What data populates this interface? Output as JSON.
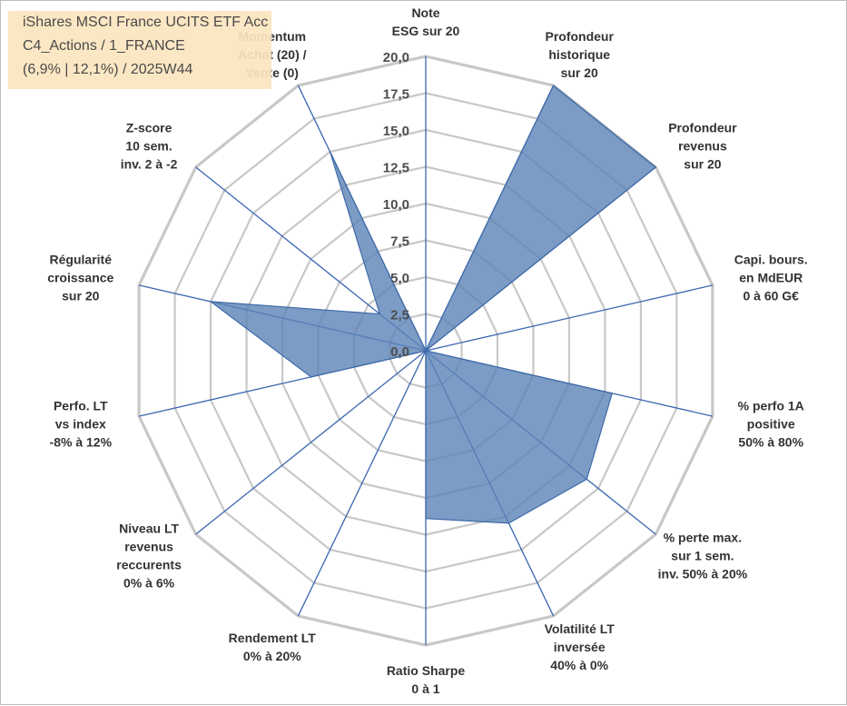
{
  "title": {
    "line1": "iShares MSCI France UCITS ETF Acc",
    "line2": "C4_Actions / 1_FRANCE",
    "line3": "(6,9% | 12,1%) / 2025W44"
  },
  "colors": {
    "fill": "#5b83b7",
    "stroke": "#3f6aa8",
    "grid": "#c8c8c8",
    "spoke": "#3a66b0",
    "title_bg": "#fbe6bf"
  },
  "chart_data": {
    "type": "radar",
    "rlim": [
      0,
      20
    ],
    "ticks": [
      "0,0",
      "2,5",
      "5,0",
      "7,5",
      "10,0",
      "12,5",
      "15,0",
      "17,5",
      "20,0"
    ],
    "axes": [
      {
        "label": [
          "Note",
          "ESG sur 20"
        ],
        "value": 0
      },
      {
        "label": [
          "Profondeur",
          "historique",
          "sur 20"
        ],
        "value": 20
      },
      {
        "label": [
          "Profondeur",
          "revenus",
          "sur 20"
        ],
        "value": 20
      },
      {
        "label": [
          "Capi. bours.",
          "en MdEUR",
          "0 à 60 G€"
        ],
        "value": 0
      },
      {
        "label": [
          "% perfo 1A",
          "positive",
          "50% à 80%"
        ],
        "value": 13
      },
      {
        "label": [
          "% perte max.",
          "sur 1 sem.",
          "inv. 50% à 20%"
        ],
        "value": 14
      },
      {
        "label": [
          "Volatilité LT",
          "inversée",
          "40% à 0%"
        ],
        "value": 13
      },
      {
        "label": [
          "Ratio Sharpe",
          "0 à 1"
        ],
        "value": 11.4
      },
      {
        "label": [
          "Rendement LT",
          "0% à 20%"
        ],
        "value": 0
      },
      {
        "label": [
          "Niveau LT",
          "revenus",
          "reccurents",
          "0% à 6%"
        ],
        "value": 0
      },
      {
        "label": [
          "Perfo. LT",
          "vs index",
          "-8% à 12%"
        ],
        "value": 8
      },
      {
        "label": [
          "Régularité",
          "croissance",
          "sur 20"
        ],
        "value": 15
      },
      {
        "label": [
          "Z-score",
          "10 sem.",
          "inv. 2 à -2"
        ],
        "value": 4
      },
      {
        "label": [
          "Momentum",
          "Achat (20) /",
          "Vente (0)"
        ],
        "value": 15
      }
    ]
  }
}
